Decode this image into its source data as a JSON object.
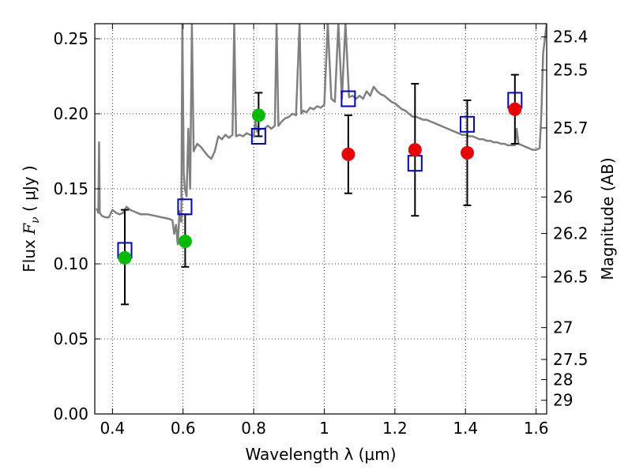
{
  "chart_data": {
    "type": "scatter",
    "xlabel": "Wavelength  λ (μm)",
    "ylabel_prefix": "Flux  ",
    "ylabel_var": "F",
    "ylabel_sub": "ν",
    "ylabel_unit": "  ( μJy )",
    "y2label": "Magnitude (AB)",
    "xlim": [
      0.35,
      1.63
    ],
    "ylim": [
      0.0,
      0.26
    ],
    "grid": true,
    "x_ticks": [
      {
        "value": 0.4,
        "label": "0.4"
      },
      {
        "value": 0.6,
        "label": "0.6"
      },
      {
        "value": 0.8,
        "label": "0.8"
      },
      {
        "value": 1.0,
        "label": "1"
      },
      {
        "value": 1.2,
        "label": "1.2"
      },
      {
        "value": 1.4,
        "label": "1.4"
      },
      {
        "value": 1.6,
        "label": "1.6"
      }
    ],
    "y_ticks": [
      {
        "value": 0.0,
        "label": "0.00"
      },
      {
        "value": 0.05,
        "label": "0.05"
      },
      {
        "value": 0.1,
        "label": "0.10"
      },
      {
        "value": 0.15,
        "label": "0.15"
      },
      {
        "value": 0.2,
        "label": "0.20"
      },
      {
        "value": 0.25,
        "label": "0.25"
      }
    ],
    "y2_ticks": [
      {
        "mag": 25.4,
        "label": "25.4"
      },
      {
        "mag": 25.5,
        "label": "25.5"
      },
      {
        "mag": 25.7,
        "label": "25.7"
      },
      {
        "mag": 26,
        "label": "26"
      },
      {
        "mag": 26.2,
        "label": "26.2"
      },
      {
        "mag": 26.5,
        "label": "26.5"
      },
      {
        "mag": 27,
        "label": "27"
      },
      {
        "mag": 27.5,
        "label": "27.5"
      },
      {
        "mag": 28,
        "label": "28"
      },
      {
        "mag": 29,
        "label": "29"
      }
    ],
    "series": [
      {
        "kind": "model-spectrum",
        "color": "#808080",
        "points": [
          [
            0.355,
            0.137
          ],
          [
            0.36,
            0.134
          ],
          [
            0.362,
            0.181
          ],
          [
            0.364,
            0.134
          ],
          [
            0.37,
            0.132
          ],
          [
            0.38,
            0.131
          ],
          [
            0.39,
            0.131
          ],
          [
            0.4,
            0.136
          ],
          [
            0.41,
            0.134
          ],
          [
            0.42,
            0.133
          ],
          [
            0.43,
            0.134
          ],
          [
            0.44,
            0.138
          ],
          [
            0.45,
            0.136
          ],
          [
            0.46,
            0.135
          ],
          [
            0.48,
            0.133
          ],
          [
            0.5,
            0.133
          ],
          [
            0.52,
            0.132
          ],
          [
            0.54,
            0.131
          ],
          [
            0.56,
            0.13
          ],
          [
            0.57,
            0.129
          ],
          [
            0.575,
            0.12
          ],
          [
            0.58,
            0.126
          ],
          [
            0.585,
            0.113
          ],
          [
            0.59,
            0.135
          ],
          [
            0.595,
            0.128
          ],
          [
            0.598,
            0.26
          ],
          [
            0.602,
            0.16
          ],
          [
            0.605,
            0.15
          ],
          [
            0.61,
            0.145
          ],
          [
            0.615,
            0.19
          ],
          [
            0.62,
            0.15
          ],
          [
            0.625,
            0.26
          ],
          [
            0.63,
            0.175
          ],
          [
            0.64,
            0.18
          ],
          [
            0.65,
            0.178
          ],
          [
            0.66,
            0.175
          ],
          [
            0.67,
            0.172
          ],
          [
            0.68,
            0.17
          ],
          [
            0.69,
            0.175
          ],
          [
            0.7,
            0.185
          ],
          [
            0.71,
            0.183
          ],
          [
            0.72,
            0.186
          ],
          [
            0.73,
            0.184
          ],
          [
            0.74,
            0.186
          ],
          [
            0.745,
            0.26
          ],
          [
            0.75,
            0.185
          ],
          [
            0.76,
            0.186
          ],
          [
            0.77,
            0.185
          ],
          [
            0.78,
            0.187
          ],
          [
            0.79,
            0.186
          ],
          [
            0.8,
            0.185
          ],
          [
            0.805,
            0.195
          ],
          [
            0.81,
            0.188
          ],
          [
            0.82,
            0.19
          ],
          [
            0.83,
            0.19
          ],
          [
            0.84,
            0.192
          ],
          [
            0.85,
            0.19
          ],
          [
            0.86,
            0.192
          ],
          [
            0.865,
            0.26
          ],
          [
            0.87,
            0.192
          ],
          [
            0.88,
            0.195
          ],
          [
            0.89,
            0.197
          ],
          [
            0.9,
            0.198
          ],
          [
            0.91,
            0.2
          ],
          [
            0.92,
            0.199
          ],
          [
            0.93,
            0.26
          ],
          [
            0.935,
            0.2
          ],
          [
            0.94,
            0.202
          ],
          [
            0.95,
            0.201
          ],
          [
            0.96,
            0.204
          ],
          [
            0.97,
            0.203
          ],
          [
            0.98,
            0.205
          ],
          [
            0.99,
            0.204
          ],
          [
            1.0,
            0.206
          ],
          [
            1.01,
            0.26
          ],
          [
            1.02,
            0.21
          ],
          [
            1.03,
            0.208
          ],
          [
            1.04,
            0.26
          ],
          [
            1.05,
            0.21
          ],
          [
            1.06,
            0.26
          ],
          [
            1.07,
            0.211
          ],
          [
            1.08,
            0.212
          ],
          [
            1.09,
            0.21
          ],
          [
            1.1,
            0.212
          ],
          [
            1.11,
            0.21
          ],
          [
            1.12,
            0.215
          ],
          [
            1.13,
            0.212
          ],
          [
            1.14,
            0.218
          ],
          [
            1.15,
            0.215
          ],
          [
            1.16,
            0.213
          ],
          [
            1.17,
            0.212
          ],
          [
            1.18,
            0.21
          ],
          [
            1.19,
            0.208
          ],
          [
            1.2,
            0.207
          ],
          [
            1.21,
            0.205
          ],
          [
            1.22,
            0.203
          ],
          [
            1.23,
            0.202
          ],
          [
            1.24,
            0.2
          ],
          [
            1.25,
            0.198
          ],
          [
            1.26,
            0.198
          ],
          [
            1.27,
            0.197
          ],
          [
            1.28,
            0.196
          ],
          [
            1.29,
            0.196
          ],
          [
            1.3,
            0.195
          ],
          [
            1.31,
            0.194
          ],
          [
            1.32,
            0.193
          ],
          [
            1.33,
            0.192
          ],
          [
            1.34,
            0.191
          ],
          [
            1.35,
            0.19
          ],
          [
            1.36,
            0.189
          ],
          [
            1.37,
            0.188
          ],
          [
            1.38,
            0.187
          ],
          [
            1.39,
            0.186
          ],
          [
            1.4,
            0.186
          ],
          [
            1.41,
            0.185
          ],
          [
            1.42,
            0.185
          ],
          [
            1.43,
            0.184
          ],
          [
            1.44,
            0.183
          ],
          [
            1.45,
            0.183
          ],
          [
            1.46,
            0.182
          ],
          [
            1.47,
            0.182
          ],
          [
            1.48,
            0.181
          ],
          [
            1.49,
            0.181
          ],
          [
            1.5,
            0.18
          ],
          [
            1.51,
            0.18
          ],
          [
            1.52,
            0.179
          ],
          [
            1.53,
            0.179
          ],
          [
            1.54,
            0.179
          ],
          [
            1.545,
            0.19
          ],
          [
            1.55,
            0.18
          ],
          [
            1.56,
            0.179
          ],
          [
            1.57,
            0.178
          ],
          [
            1.58,
            0.177
          ],
          [
            1.59,
            0.176
          ],
          [
            1.6,
            0.176
          ],
          [
            1.61,
            0.177
          ],
          [
            1.615,
            0.2
          ],
          [
            1.62,
            0.24
          ],
          [
            1.63,
            0.26
          ]
        ]
      },
      {
        "kind": "model-photometry",
        "color": "#0000cc",
        "points": [
          [
            0.435,
            0.109
          ],
          [
            0.605,
            0.138
          ],
          [
            0.814,
            0.185
          ],
          [
            1.068,
            0.21
          ],
          [
            1.257,
            0.167
          ],
          [
            1.405,
            0.193
          ],
          [
            1.54,
            0.209
          ]
        ]
      },
      {
        "kind": "observed-acs",
        "color": "#00bb00",
        "points": [
          {
            "x": 0.435,
            "y": 0.104,
            "lo": 0.073,
            "hi": 0.136
          },
          {
            "x": 0.606,
            "y": 0.115,
            "lo": 0.098,
            "hi": 0.133
          },
          {
            "x": 0.814,
            "y": 0.199,
            "lo": 0.185,
            "hi": 0.214
          }
        ]
      },
      {
        "kind": "observed-wfc3",
        "color": "#ee0000",
        "points": [
          {
            "x": 1.068,
            "y": 0.173,
            "lo": 0.147,
            "hi": 0.199
          },
          {
            "x": 1.257,
            "y": 0.176,
            "lo": 0.132,
            "hi": 0.22
          },
          {
            "x": 1.405,
            "y": 0.174,
            "lo": 0.139,
            "hi": 0.209
          },
          {
            "x": 1.54,
            "y": 0.203,
            "lo": 0.18,
            "hi": 0.226
          }
        ]
      }
    ]
  }
}
